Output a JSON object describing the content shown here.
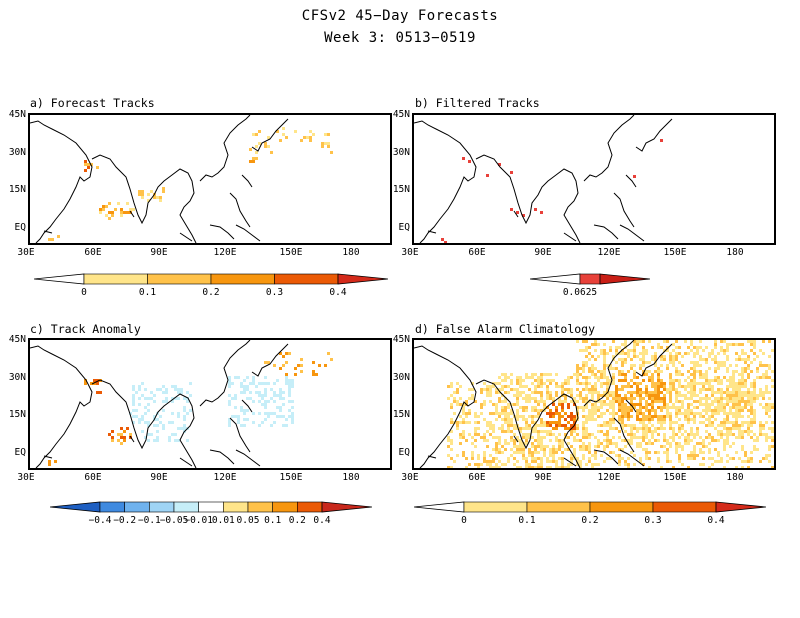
{
  "title": {
    "line1": "CFSv2 45−Day Forecasts",
    "line2": "Week 3: 0513−0519"
  },
  "axes": {
    "lat_labels": [
      "45N",
      "30N",
      "15N",
      "EQ"
    ],
    "lon_labels": [
      "30E",
      "60E",
      "90E",
      "120E",
      "150E",
      "180"
    ]
  },
  "panels": {
    "a": {
      "title": "a) Forecast Tracks",
      "colorbar": {
        "labels": [
          "0",
          "0.1",
          "0.2",
          "0.3",
          "0.4"
        ],
        "colors": [
          "#ffffff",
          "#ffe58a",
          "#ffc24a",
          "#f7960f",
          "#eb5a05",
          "#d42a1a"
        ]
      }
    },
    "b": {
      "title": "b) Filtered Tracks",
      "colorbar": {
        "labels": [
          "0.0625"
        ],
        "colors": [
          "#ffffff",
          "#e8413a",
          "#c91f16"
        ]
      }
    },
    "c": {
      "title": "c) Track Anomaly",
      "colorbar": {
        "labels": [
          "−0.4",
          "−0.2",
          "−0.1",
          "−0.05",
          "−0.01",
          "0.01",
          "0.05",
          "0.1",
          "0.2",
          "0.4"
        ],
        "colors": [
          "#1e5fc2",
          "#3f8ae0",
          "#6fb2ee",
          "#9fd4f5",
          "#c6eef8",
          "#ffffff",
          "#ffe58a",
          "#ffc24a",
          "#f7960f",
          "#eb5a05",
          "#c8281c"
        ]
      }
    },
    "d": {
      "title": "d) False Alarm Climatology",
      "colorbar": {
        "labels": [
          "0",
          "0.1",
          "0.2",
          "0.3",
          "0.4"
        ],
        "colors": [
          "#ffffff",
          "#ffe58a",
          "#ffc24a",
          "#f7960f",
          "#eb5a05",
          "#d42a1a"
        ]
      }
    }
  }
}
